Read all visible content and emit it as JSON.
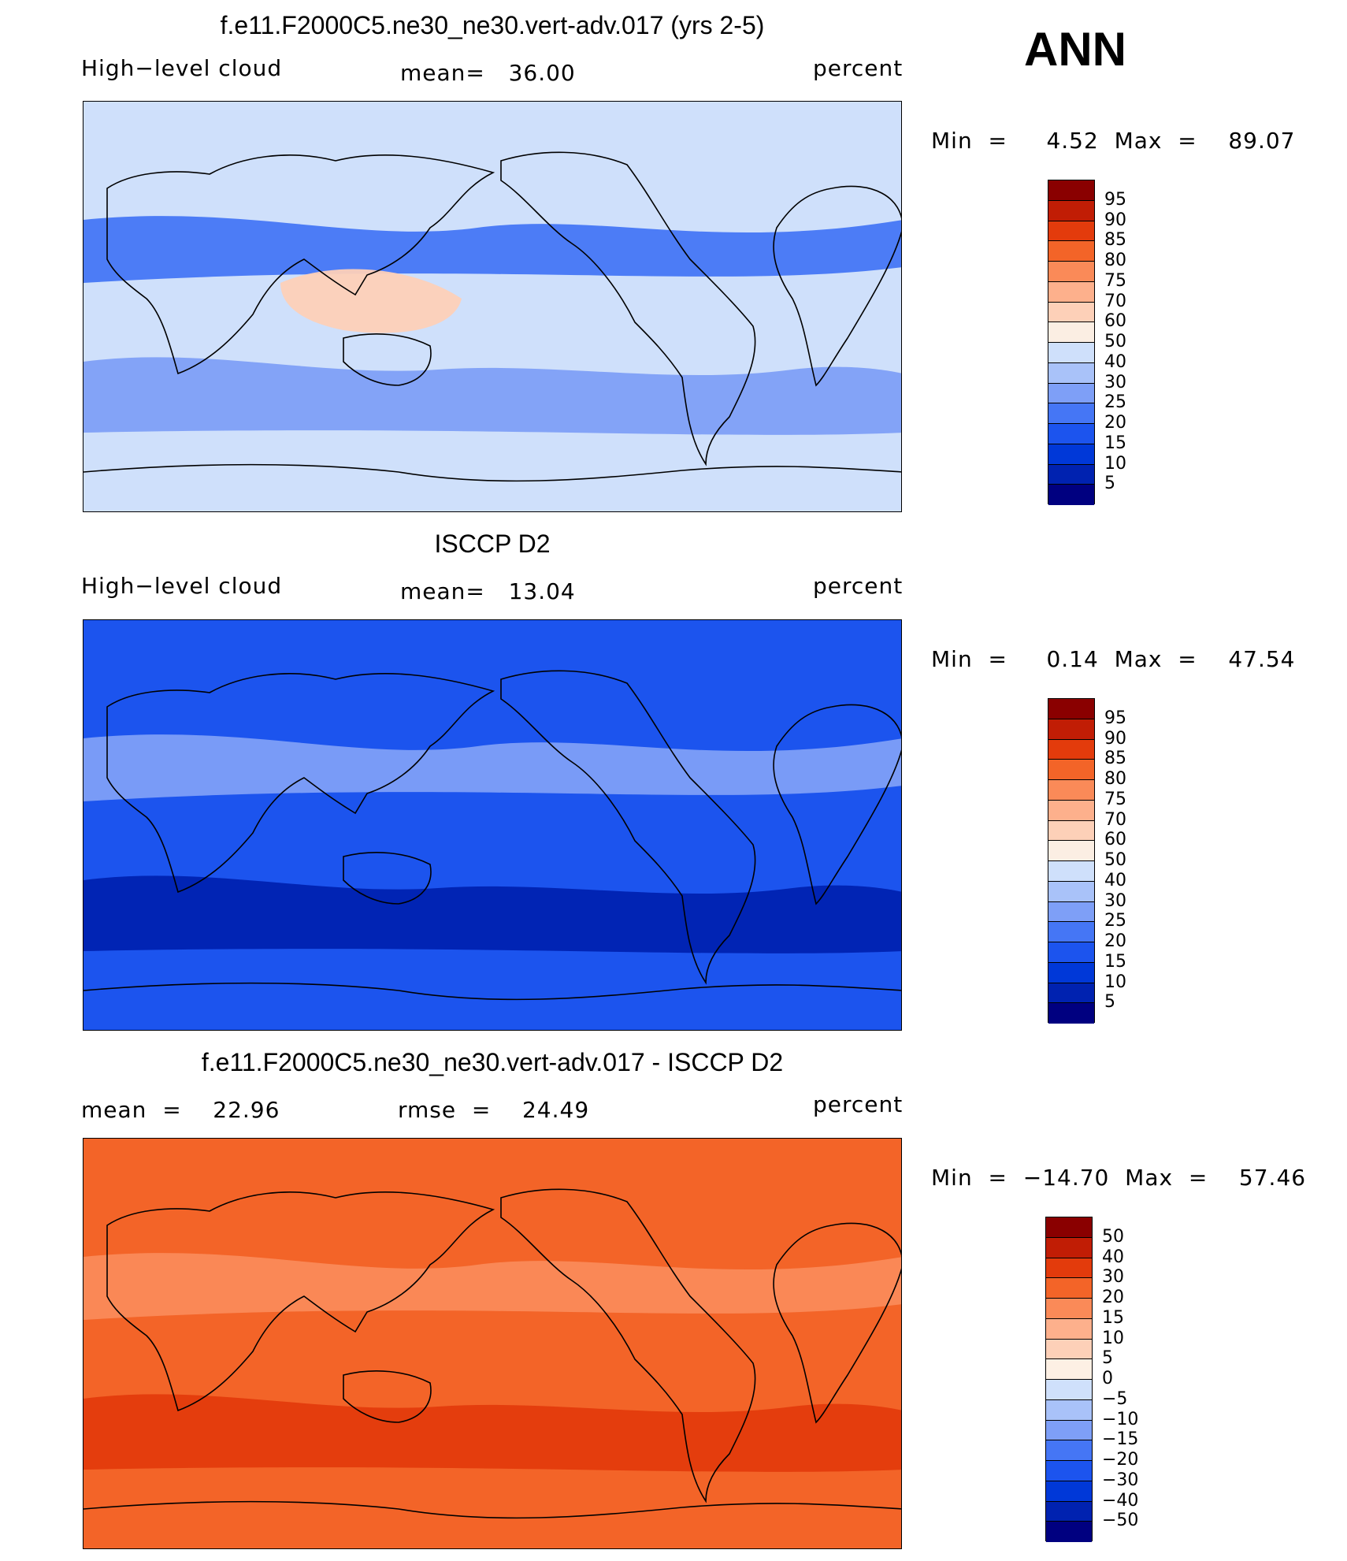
{
  "corner_label": "ANN",
  "palettes": {
    "abs": [
      "#fff",
      "#000080",
      "#0022b0",
      "#0038d8",
      "#1c54ee",
      "#4576f5",
      "#7e9ff7",
      "#a9c2f9",
      "#cfe0fb",
      "#fbeee3",
      "#fdd0b8",
      "#fdb08c",
      "#fa8a58",
      "#f36428",
      "#e33b0c",
      "#c11d05",
      "#8a0000"
    ],
    "diff": [
      "#000080",
      "#0022b0",
      "#0038d8",
      "#1c54ee",
      "#4576f5",
      "#7e9ff7",
      "#a9c2f9",
      "#cfe0fb",
      "#fdf0e4",
      "#fdd0b8",
      "#fdb08c",
      "#fa8a58",
      "#f36428",
      "#e33b0c",
      "#c11d05",
      "#8a0000"
    ]
  },
  "panels": [
    {
      "title": "f.e11.F2000C5.ne30_ne30.vert-adv.017 (yrs 2-5)",
      "left_label": "High−level cloud",
      "center_label": "mean=   36.00",
      "right_label": "percent",
      "minmax": "Min  =     4.52  Max  =    89.07",
      "map_base_color": "#cfe0fb",
      "regions": [
        {
          "name": "southern-ocean-band",
          "color": "#7e9ff7"
        },
        {
          "name": "subtropical-north",
          "color": "#4576f5"
        },
        {
          "name": "warm-pool",
          "color": "#fdd0b8"
        }
      ],
      "colorbar": {
        "colors": [
          "#8a0000",
          "#c11d05",
          "#e33b0c",
          "#f36428",
          "#fa8a58",
          "#fdb08c",
          "#fdd0b8",
          "#fbeee3",
          "#cfe0fb",
          "#a9c2f9",
          "#7e9ff7",
          "#4576f5",
          "#1c54ee",
          "#0038d8",
          "#0022b0",
          "#000080"
        ],
        "labels": [
          "95",
          "90",
          "85",
          "80",
          "75",
          "70",
          "60",
          "50",
          "40",
          "30",
          "25",
          "20",
          "15",
          "10",
          "5"
        ]
      }
    },
    {
      "title": "ISCCP D2",
      "left_label": "High−level cloud",
      "center_label": "mean=   13.04",
      "right_label": "percent",
      "minmax": "Min  =     0.14  Max  =    47.54",
      "map_base_color": "#1c54ee",
      "regions": [
        {
          "name": "deep-blue-core",
          "color": "#0022b0"
        },
        {
          "name": "light-tropics",
          "color": "#7e9ff7"
        }
      ],
      "colorbar": {
        "colors": [
          "#8a0000",
          "#c11d05",
          "#e33b0c",
          "#f36428",
          "#fa8a58",
          "#fdb08c",
          "#fdd0b8",
          "#fbeee3",
          "#cfe0fb",
          "#a9c2f9",
          "#7e9ff7",
          "#4576f5",
          "#1c54ee",
          "#0038d8",
          "#0022b0",
          "#000080"
        ],
        "labels": [
          "95",
          "90",
          "85",
          "80",
          "75",
          "70",
          "60",
          "50",
          "40",
          "30",
          "25",
          "20",
          "15",
          "10",
          "5"
        ]
      }
    },
    {
      "title": "f.e11.F2000C5.ne30_ne30.vert-adv.017 - ISCCP D2",
      "left_label": "mean  =    22.96",
      "center_label": "rmse  =    24.49",
      "right_label": "percent",
      "minmax": "Min  =  −14.70  Max  =    57.46",
      "map_base_color": "#f36428",
      "regions": [
        {
          "name": "strong-positive",
          "color": "#e33b0c"
        },
        {
          "name": "weak-positive",
          "color": "#fa8a58"
        }
      ],
      "colorbar": {
        "colors": [
          "#8a0000",
          "#c11d05",
          "#e33b0c",
          "#f36428",
          "#fa8a58",
          "#fdb08c",
          "#fdd0b8",
          "#fdf0e4",
          "#cfe0fb",
          "#a9c2f9",
          "#7e9ff7",
          "#4576f5",
          "#1c54ee",
          "#0038d8",
          "#0022b0",
          "#000080"
        ],
        "labels": [
          "50",
          "40",
          "30",
          "20",
          "15",
          "10",
          "5",
          "0",
          "−5",
          "−10",
          "−15",
          "−20",
          "−30",
          "−40",
          "−50"
        ]
      }
    }
  ]
}
